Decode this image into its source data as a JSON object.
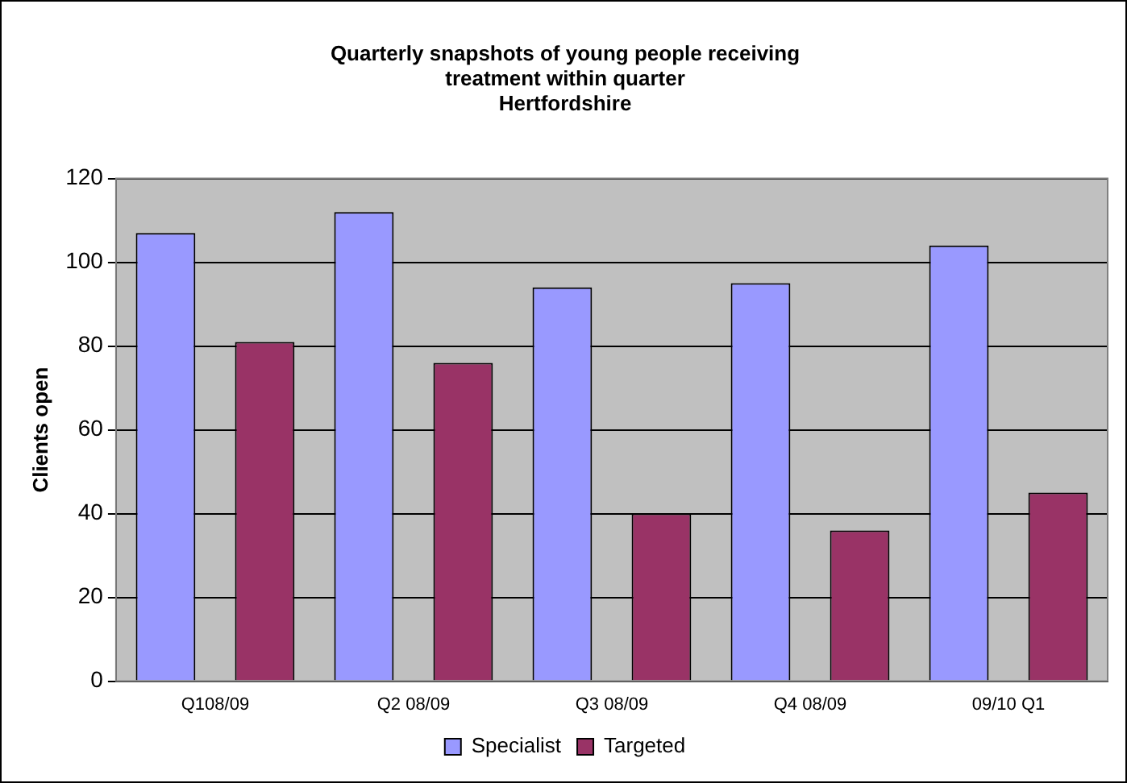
{
  "chart_data": {
    "type": "bar",
    "title": [
      "Quarterly snapshots of young people receiving",
      "treatment within quarter",
      "Hertfordshire"
    ],
    "ylabel": "Clients open",
    "categories": [
      "Q108/09",
      "Q2 08/09",
      "Q3 08/09",
      "Q4 08/09",
      "09/10 Q1"
    ],
    "series": [
      {
        "name": "Specialist",
        "color": "#9999ff",
        "values": [
          107,
          112,
          94,
          95,
          104
        ]
      },
      {
        "name": "Targeted",
        "color": "#993366",
        "values": [
          81,
          76,
          40,
          36,
          45
        ]
      }
    ],
    "ylim": [
      0,
      120
    ],
    "yticks": [
      0,
      20,
      40,
      60,
      80,
      100,
      120
    ],
    "grid": "y",
    "legend": "bottom"
  }
}
